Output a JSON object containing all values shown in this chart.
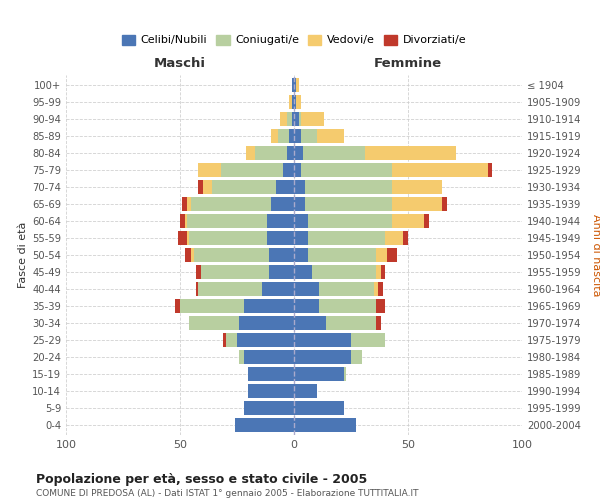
{
  "age_groups": [
    "0-4",
    "5-9",
    "10-14",
    "15-19",
    "20-24",
    "25-29",
    "30-34",
    "35-39",
    "40-44",
    "45-49",
    "50-54",
    "55-59",
    "60-64",
    "65-69",
    "70-74",
    "75-79",
    "80-84",
    "85-89",
    "90-94",
    "95-99",
    "100+"
  ],
  "birth_years": [
    "2000-2004",
    "1995-1999",
    "1990-1994",
    "1985-1989",
    "1980-1984",
    "1975-1979",
    "1970-1974",
    "1965-1969",
    "1960-1964",
    "1955-1959",
    "1950-1954",
    "1945-1949",
    "1940-1944",
    "1935-1939",
    "1930-1934",
    "1925-1929",
    "1920-1924",
    "1915-1919",
    "1910-1914",
    "1905-1909",
    "≤ 1904"
  ],
  "colors": {
    "celibi": "#4b76b5",
    "coniugati": "#b8cfa0",
    "vedovi": "#f5cb6e",
    "divorziati": "#c0392b"
  },
  "maschi": {
    "celibi": [
      26,
      22,
      20,
      20,
      22,
      25,
      24,
      22,
      14,
      11,
      11,
      12,
      12,
      10,
      8,
      5,
      3,
      2,
      1,
      1,
      1
    ],
    "coniugati": [
      0,
      0,
      0,
      0,
      2,
      5,
      22,
      28,
      28,
      30,
      33,
      34,
      35,
      35,
      28,
      27,
      14,
      5,
      2,
      0,
      0
    ],
    "vedovi": [
      0,
      0,
      0,
      0,
      0,
      0,
      0,
      0,
      0,
      0,
      1,
      1,
      1,
      2,
      4,
      10,
      4,
      3,
      3,
      1,
      0
    ],
    "divorziati": [
      0,
      0,
      0,
      0,
      0,
      1,
      0,
      2,
      1,
      2,
      3,
      4,
      2,
      2,
      2,
      0,
      0,
      0,
      0,
      0,
      0
    ]
  },
  "femmine": {
    "celibi": [
      27,
      22,
      10,
      22,
      25,
      25,
      14,
      11,
      11,
      8,
      6,
      6,
      6,
      5,
      5,
      3,
      4,
      3,
      2,
      1,
      1
    ],
    "coniugati": [
      0,
      0,
      0,
      1,
      5,
      15,
      22,
      25,
      24,
      28,
      30,
      34,
      37,
      38,
      38,
      40,
      27,
      7,
      1,
      0,
      0
    ],
    "vedovi": [
      0,
      0,
      0,
      0,
      0,
      0,
      0,
      0,
      2,
      2,
      5,
      8,
      14,
      22,
      22,
      42,
      40,
      12,
      10,
      2,
      1
    ],
    "divorziati": [
      0,
      0,
      0,
      0,
      0,
      0,
      2,
      4,
      2,
      2,
      4,
      2,
      2,
      2,
      0,
      2,
      0,
      0,
      0,
      0,
      0
    ]
  },
  "title": "Popolazione per età, sesso e stato civile - 2005",
  "subtitle": "COMUNE DI PREDOSA (AL) - Dati ISTAT 1° gennaio 2005 - Elaborazione TUTTITALIA.IT",
  "xlabel_left": "Maschi",
  "xlabel_right": "Femmine",
  "ylabel_left": "Fasce di età",
  "ylabel_right": "Anni di nascita",
  "legend_labels": [
    "Celibi/Nubili",
    "Coniugati/e",
    "Vedovi/e",
    "Divorziati/e"
  ],
  "xlim": 100,
  "background_color": "#ffffff",
  "grid_color": "#cccccc"
}
